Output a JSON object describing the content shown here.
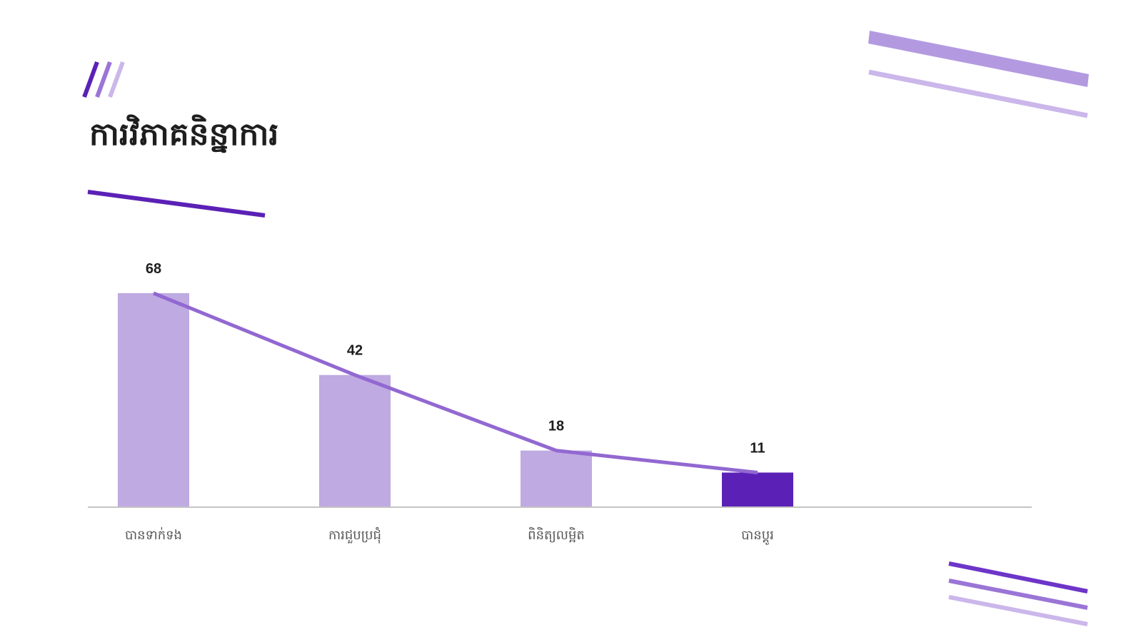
{
  "page": {
    "title": "ការវិភាគនិន្នាការ"
  },
  "colors": {
    "bar_light": "#bfaae2",
    "bar_highlight": "#5b21b6",
    "trend_line": "#9268d1",
    "title_underline": "#5b21b6",
    "axis": "#c4c4c4",
    "deco_dark": "#6d35c9",
    "deco_mid": "#9b75d6",
    "deco_light": "#cbb7ea"
  },
  "chart_data": {
    "type": "bar",
    "categories": [
      "បានទាក់ទង",
      "ការជួបប្រជុំ",
      "ពិនិត្យលម្អិត",
      "បានប្តូរ"
    ],
    "values": [
      68,
      42,
      18,
      11
    ],
    "highlight_index": 3,
    "trend_line": true,
    "ylim": [
      0,
      68
    ],
    "grid": false,
    "legend": "none"
  }
}
